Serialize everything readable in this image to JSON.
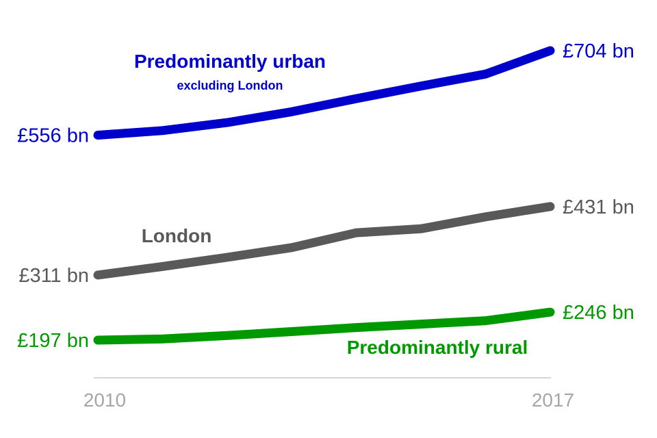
{
  "chart_data": {
    "type": "line",
    "x": [
      2010,
      2011,
      2012,
      2013,
      2014,
      2015,
      2016,
      2017
    ],
    "xlabel": "",
    "ylabel": "",
    "x_tick_labels": [
      "2010",
      "2017"
    ],
    "grid": false,
    "legend": "none",
    "series": [
      {
        "name": "Predominantly urban",
        "subtitle": "excluding London",
        "values": [
          556,
          564,
          578,
          597,
          620,
          642,
          663,
          704
        ],
        "start_label": "£556 bn",
        "end_label": "£704 bn",
        "color": "#0000cc"
      },
      {
        "name": "London",
        "values": [
          311,
          326,
          342,
          359,
          385,
          392,
          413,
          431
        ],
        "start_label": "£311 bn",
        "end_label": "£431 bn",
        "color": "#595959"
      },
      {
        "name": "Predominantly rural",
        "values": [
          197,
          199,
          205,
          212,
          219,
          225,
          231,
          246
        ],
        "start_label": "£197 bn",
        "end_label": "£246 bn",
        "color": "#009900"
      }
    ]
  }
}
